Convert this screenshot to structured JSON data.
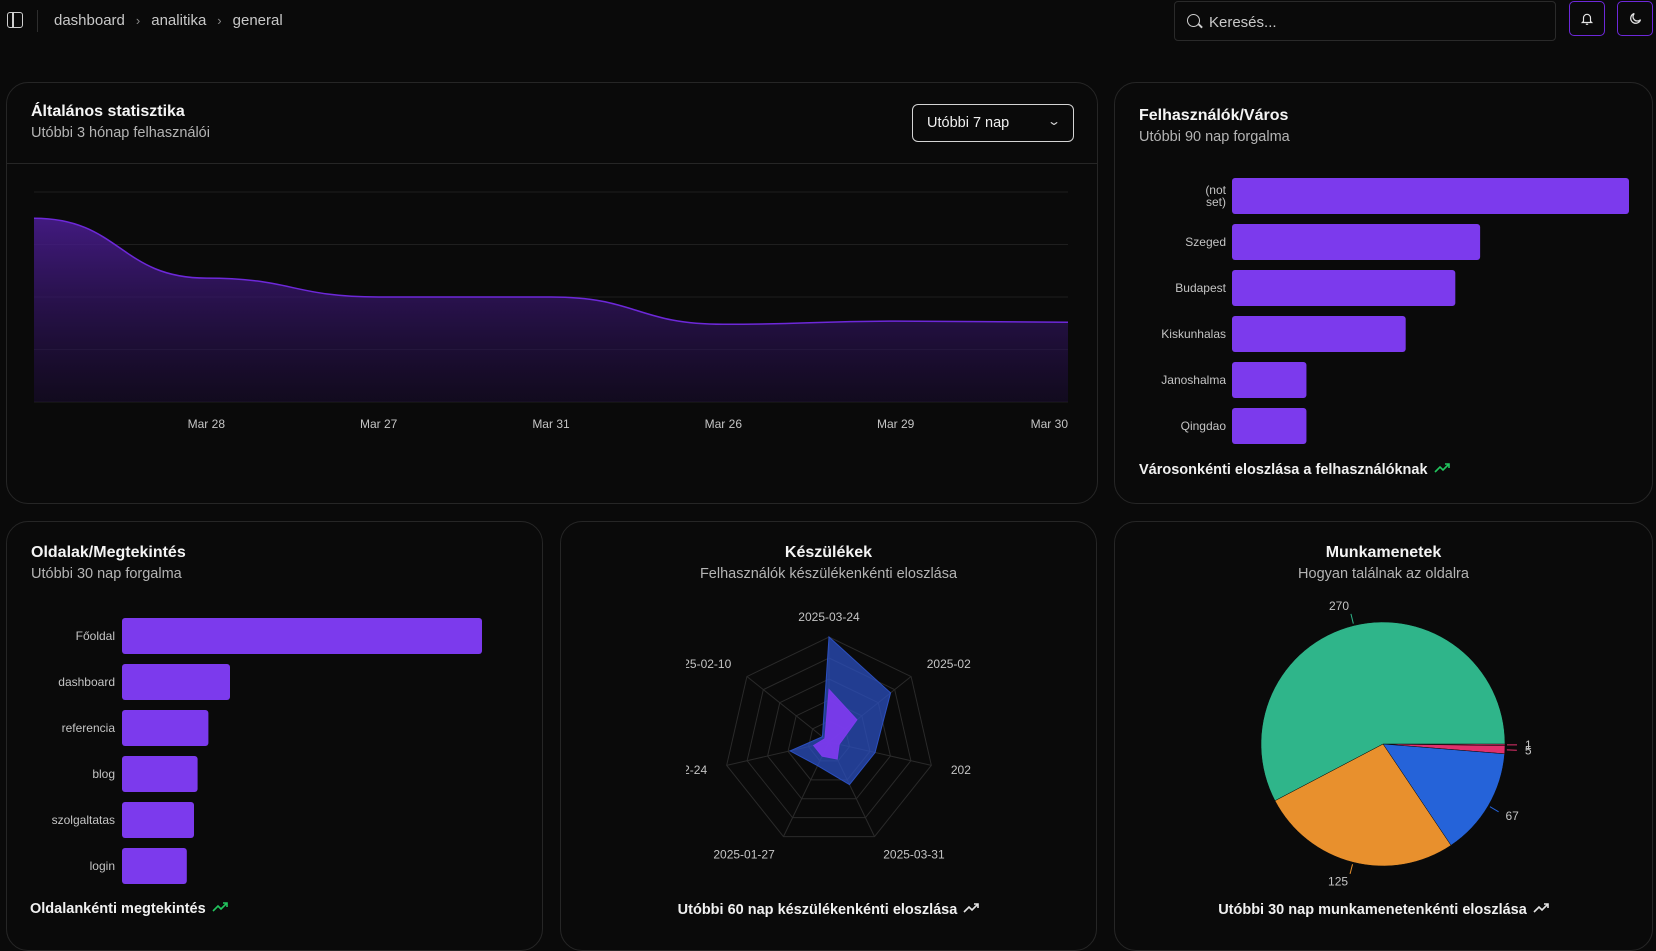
{
  "breadcrumb": [
    "dashboard",
    "analitika",
    "general"
  ],
  "search": {
    "placeholder": "Keresés..."
  },
  "header_icons": [
    "bell-icon",
    "moon-icon"
  ],
  "colors": {
    "accent": "#6d28d9",
    "bar": "#7c3aed",
    "green": "#2fb58a",
    "orange": "#e8902d",
    "blue": "#2563d9",
    "pink": "#e1306c"
  },
  "stats": {
    "title": "Általános statisztika",
    "subtitle": "Utóbbi 3 hónap felhasználói",
    "range_select": "Utóbbi 7 nap",
    "chart_data": {
      "type": "area",
      "x": [
        "",
        "Mar 28",
        "Mar 27",
        "Mar 31",
        "Mar 26",
        "Mar 29",
        "Mar 30"
      ],
      "values": [
        175,
        118,
        100,
        100,
        74,
        77,
        76
      ],
      "ylim": [
        0,
        200
      ],
      "grid": true
    }
  },
  "cities": {
    "title": "Felhasználók/Város",
    "subtitle": "Utóbbi 90 nap forgalma",
    "footer": "Városonkénti eloszlása a felhasználóknak",
    "chart_data": {
      "type": "bar",
      "orientation": "horizontal",
      "categories": [
        "(not set)",
        "Szeged",
        "Budapest",
        "Kiskunhalas",
        "Janoshalma",
        "Qingdao"
      ],
      "values": [
        16,
        10,
        9,
        7,
        3,
        3
      ]
    }
  },
  "pages": {
    "title": "Oldalak/Megtekintés",
    "subtitle": "Utóbbi 30 nap forgalma",
    "footer": "Oldalankénti megtekintés",
    "chart_data": {
      "type": "bar",
      "orientation": "horizontal",
      "categories": [
        "Főoldal",
        "dashboard",
        "referencia",
        "blog",
        "szolgaltatas",
        "login"
      ],
      "values": [
        100,
        30,
        24,
        21,
        20,
        18
      ]
    }
  },
  "devices": {
    "title": "Készülékek",
    "subtitle": "Felhasználók készülékenkénti eloszlása",
    "footer": "Utóbbi 60 nap készülékenkénti eloszlása",
    "chart_data": {
      "type": "radar",
      "axes": [
        "2025-03-24",
        "2025-02",
        "2025",
        "2025-03-31",
        "2025-01-27",
        "2-24",
        "25-02-10"
      ],
      "series": [
        {
          "values": [
            100,
            75,
            45,
            45,
            25,
            38,
            8
          ]
        },
        {
          "values": [
            50,
            34,
            10,
            18,
            15,
            15,
            5
          ]
        }
      ],
      "rmax": 100
    }
  },
  "sessions": {
    "title": "Munkamenetek",
    "subtitle": "Hogyan találnak az oldalra",
    "footer": "Utóbbi 30 nap munkamenetenkénti eloszlása",
    "chart_data": {
      "type": "pie",
      "slices": [
        {
          "value": 1,
          "label": "1",
          "color": "#e1306c"
        },
        {
          "value": 5,
          "label": "5",
          "color": "#e1306c"
        },
        {
          "value": 67,
          "label": "67",
          "color": "#2563d9"
        },
        {
          "value": 125,
          "label": "125",
          "color": "#e8902d"
        },
        {
          "value": 270,
          "label": "270",
          "color": "#2fb58a"
        }
      ]
    }
  }
}
